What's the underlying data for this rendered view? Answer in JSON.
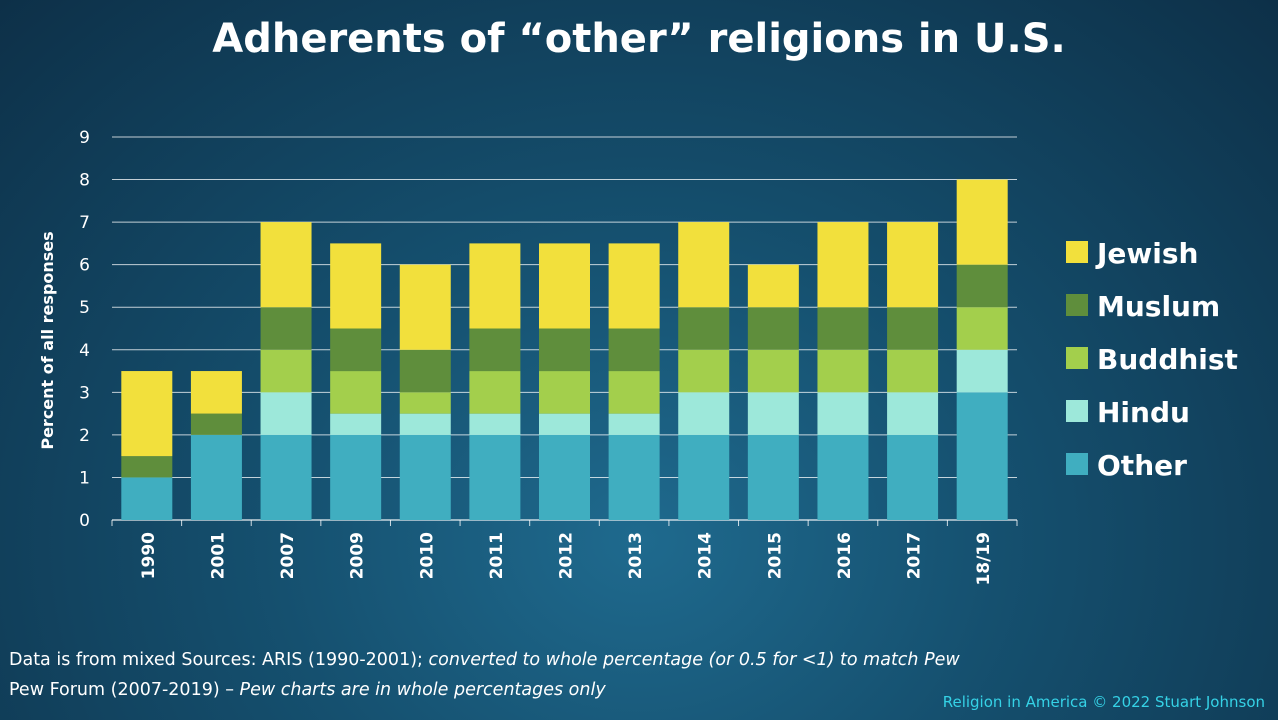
{
  "title": "Adherents of “other” religions in U.S.",
  "chart_data": {
    "type": "bar",
    "stacked": true,
    "categories": [
      "1990",
      "2001",
      "2007",
      "2009",
      "2010",
      "2011",
      "2012",
      "2013",
      "2014",
      "2015",
      "2016",
      "2017",
      "18/19"
    ],
    "series": [
      {
        "name": "Other",
        "color": "#40aec0",
        "values": [
          1,
          2,
          2,
          2,
          2,
          2,
          2,
          2,
          2,
          2,
          2,
          2,
          3
        ]
      },
      {
        "name": "Hindu",
        "color": "#9de8da",
        "values": [
          0,
          0,
          1,
          0.5,
          0.5,
          0.5,
          0.5,
          0.5,
          1,
          1,
          1,
          1,
          1
        ]
      },
      {
        "name": "Buddhist",
        "color": "#a3cf4c",
        "values": [
          0,
          0,
          1,
          1,
          0.5,
          1,
          1,
          1,
          1,
          1,
          1,
          1,
          1
        ]
      },
      {
        "name": "Muslum",
        "color": "#5f8e3c",
        "values": [
          0.5,
          0.5,
          1,
          1,
          1,
          1,
          1,
          1,
          1,
          1,
          1,
          1,
          1
        ]
      },
      {
        "name": "Jewish",
        "color": "#f2e03c",
        "values": [
          2,
          1,
          2,
          2,
          2,
          2,
          2,
          2,
          2,
          1,
          2,
          2,
          2
        ]
      }
    ],
    "legend_order": [
      "Jewish",
      "Muslum",
      "Buddhist",
      "Hindu",
      "Other"
    ],
    "legend_position": "right",
    "xlabel": "",
    "ylabel": "Percent of all responses",
    "ylim": [
      0,
      9
    ],
    "yticks": [
      0,
      1,
      2,
      3,
      4,
      5,
      6,
      7,
      8,
      9
    ],
    "grid": true
  },
  "footnote": {
    "line1_plain": "Data is from mixed Sources: ARIS (1990-2001); ",
    "line1_italic": "converted to whole percentage (or 0.5 for <1) to match Pew",
    "line2_plain": "Pew Forum (2007-2019) – ",
    "line2_italic": "Pew charts are in whole percentages only"
  },
  "credit": "Religion in America © 2022 Stuart Johnson"
}
